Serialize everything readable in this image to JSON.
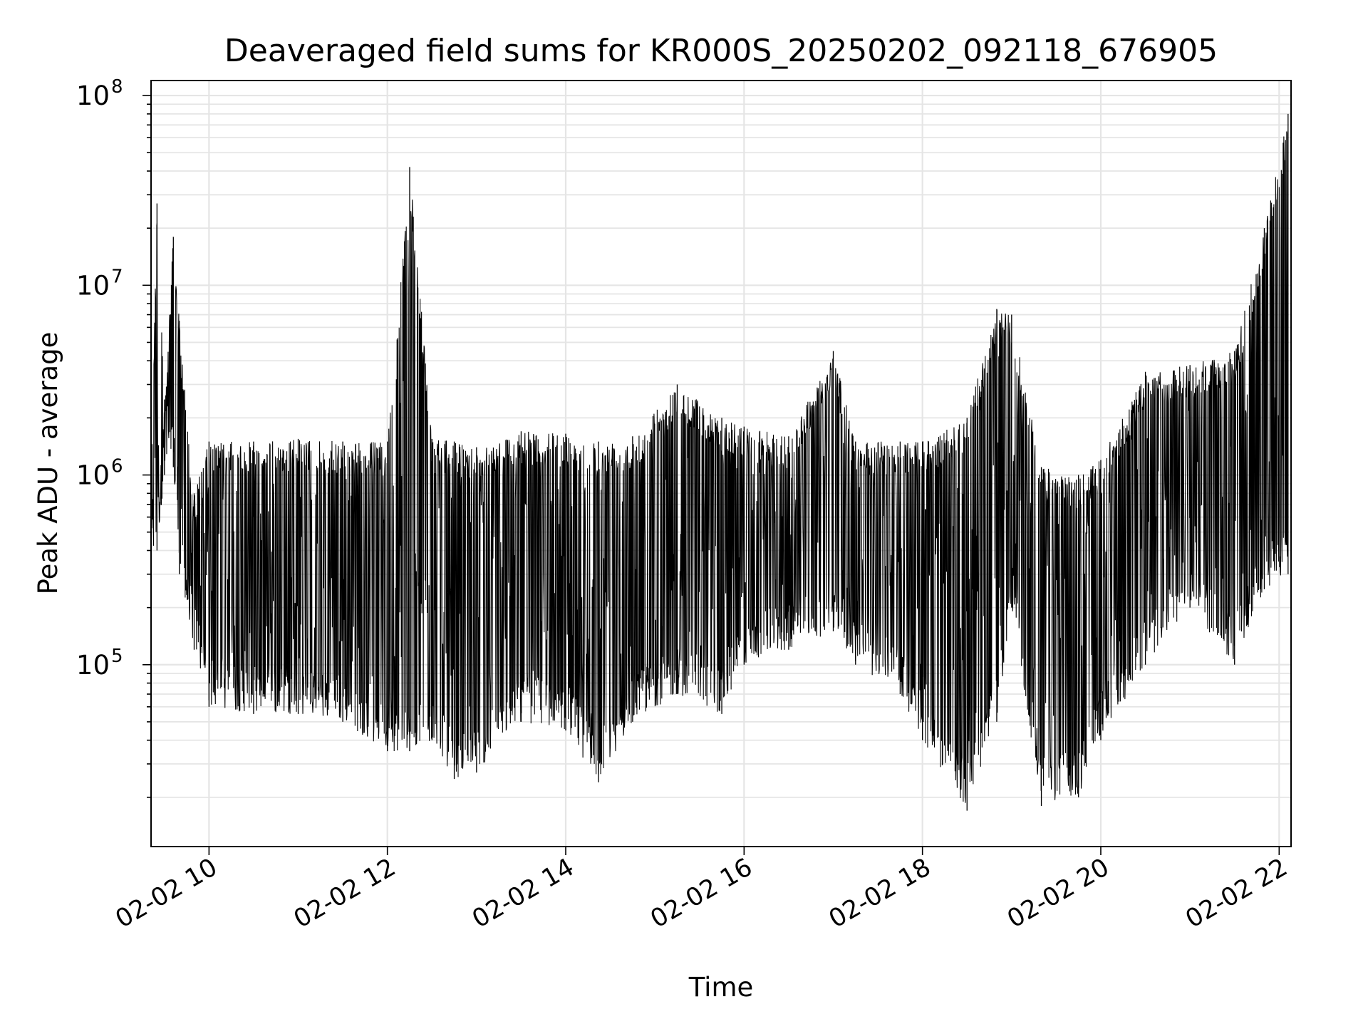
{
  "chart_data": {
    "type": "line",
    "title": "Deaveraged field sums for KR000S_20250202_092118_676905",
    "xlabel": "Time",
    "ylabel": "Peak ADU - average",
    "x_tick_labels": [
      "02-02 10",
      "02-02 12",
      "02-02 14",
      "02-02 16",
      "02-02 18",
      "02-02 20",
      "02-02 22"
    ],
    "x_ticks": [
      "2025-02-02 10:00",
      "2025-02-02 12:00",
      "2025-02-02 14:00",
      "2025-02-02 16:00",
      "2025-02-02 18:00",
      "2025-02-02 20:00",
      "2025-02-02 22:00"
    ],
    "xlim": [
      "2025-02-02 09:21",
      "2025-02-02 22:08"
    ],
    "y_scale": "log",
    "ylim": [
      11000,
      120000000
    ],
    "y_ticks": [
      {
        "value": 100000,
        "base": "10",
        "exp": "5"
      },
      {
        "value": 1000000,
        "base": "10",
        "exp": "6"
      },
      {
        "value": 10000000,
        "base": "10",
        "exp": "7"
      },
      {
        "value": 100000000,
        "base": "10",
        "exp": "8"
      }
    ],
    "grid": true,
    "line_color": "#000000",
    "grid_color": "#e5e5e5",
    "series": [
      {
        "envelope_points": [
          {
            "x": "2025-02-02 09:21",
            "upper": 1200000,
            "lower": 350000
          },
          {
            "x": "2025-02-02 09:25",
            "upper": 27000000,
            "lower": 400000
          },
          {
            "x": "2025-02-02 09:30",
            "upper": 2500000,
            "lower": 1000000
          },
          {
            "x": "2025-02-02 09:36",
            "upper": 18000000,
            "lower": 1100000
          },
          {
            "x": "2025-02-02 09:40",
            "upper": 6500000,
            "lower": 300000
          },
          {
            "x": "2025-02-02 09:50",
            "upper": 800000,
            "lower": 120000
          },
          {
            "x": "2025-02-02 10:00",
            "upper": 1500000,
            "lower": 60000
          },
          {
            "x": "2025-02-02 10:30",
            "upper": 1500000,
            "lower": 55000
          },
          {
            "x": "2025-02-02 11:00",
            "upper": 1550000,
            "lower": 55000
          },
          {
            "x": "2025-02-02 11:30",
            "upper": 1500000,
            "lower": 50000
          },
          {
            "x": "2025-02-02 12:00",
            "upper": 1500000,
            "lower": 35000
          },
          {
            "x": "2025-02-02 12:15",
            "upper": 42000000,
            "lower": 35000
          },
          {
            "x": "2025-02-02 12:30",
            "upper": 1550000,
            "lower": 40000
          },
          {
            "x": "2025-02-02 12:45",
            "upper": 1500000,
            "lower": 25000
          },
          {
            "x": "2025-02-02 13:00",
            "upper": 1400000,
            "lower": 27000
          },
          {
            "x": "2025-02-02 13:30",
            "upper": 1700000,
            "lower": 50000
          },
          {
            "x": "2025-02-02 14:00",
            "upper": 1650000,
            "lower": 45000
          },
          {
            "x": "2025-02-02 14:22",
            "upper": 1500000,
            "lower": 24000
          },
          {
            "x": "2025-02-02 14:45",
            "upper": 1600000,
            "lower": 50000
          },
          {
            "x": "2025-02-02 15:15",
            "upper": 3000000,
            "lower": 70000
          },
          {
            "x": "2025-02-02 15:45",
            "upper": 2000000,
            "lower": 55000
          },
          {
            "x": "2025-02-02 16:00",
            "upper": 1800000,
            "lower": 100000
          },
          {
            "x": "2025-02-02 16:30",
            "upper": 1600000,
            "lower": 120000
          },
          {
            "x": "2025-02-02 17:00",
            "upper": 4500000,
            "lower": 150000
          },
          {
            "x": "2025-02-02 17:15",
            "upper": 1500000,
            "lower": 100000
          },
          {
            "x": "2025-02-02 17:45",
            "upper": 1500000,
            "lower": 70000
          },
          {
            "x": "2025-02-02 18:00",
            "upper": 1500000,
            "lower": 40000
          },
          {
            "x": "2025-02-02 18:30",
            "upper": 2000000,
            "lower": 17000
          },
          {
            "x": "2025-02-02 18:50",
            "upper": 7500000,
            "lower": 50000
          },
          {
            "x": "2025-02-02 19:00",
            "upper": 7000000,
            "lower": 200000
          },
          {
            "x": "2025-02-02 19:20",
            "upper": 1100000,
            "lower": 18000
          },
          {
            "x": "2025-02-02 19:45",
            "upper": 1000000,
            "lower": 20000
          },
          {
            "x": "2025-02-02 20:00",
            "upper": 1200000,
            "lower": 40000
          },
          {
            "x": "2025-02-02 20:30",
            "upper": 3500000,
            "lower": 100000
          },
          {
            "x": "2025-02-02 21:00",
            "upper": 3800000,
            "lower": 200000
          },
          {
            "x": "2025-02-02 21:30",
            "upper": 4500000,
            "lower": 100000
          },
          {
            "x": "2025-02-02 21:50",
            "upper": 20000000,
            "lower": 250000
          },
          {
            "x": "2025-02-02 22:06",
            "upper": 80000000,
            "lower": 300000
          }
        ]
      }
    ]
  }
}
